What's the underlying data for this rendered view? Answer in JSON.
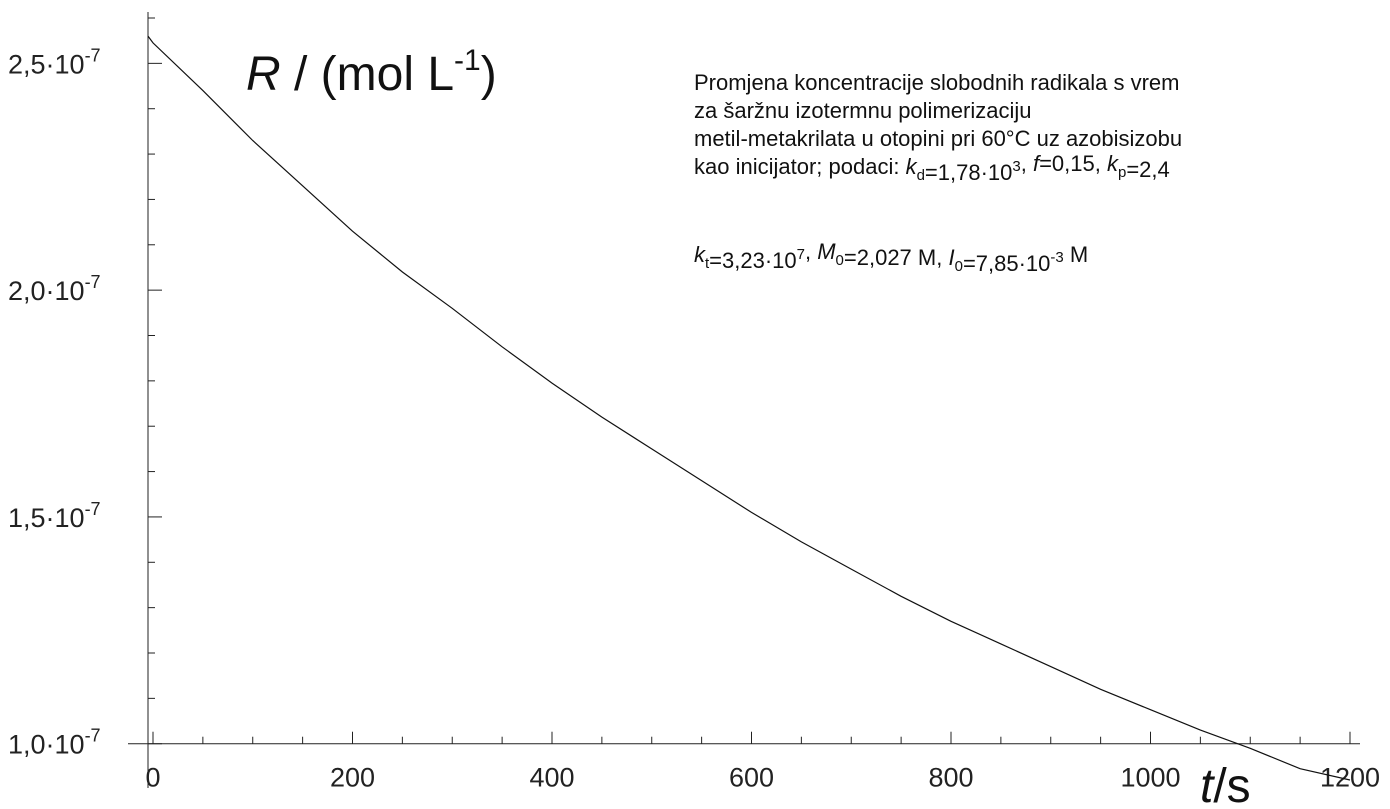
{
  "chart_data": {
    "type": "line",
    "title_lines": [
      "Promjena koncentracije slobodnih radikala s vrem",
      "za šaržnu izotermnu polimerizaciju",
      "metil-metakrilata u otopini pri 60°C uz azobisizobu",
      " kao inicijator; podaci: k_d=1,78·10^3, f=0,15, k_p=2,4",
      "k_t=3,23·10^7, M_0=2,027 M, I_0=7,85·10^-3 M"
    ],
    "xlabel": "t/s",
    "ylabel": "R / (mol L^-1)",
    "xlim": [
      -5,
      1200
    ],
    "ylim": [
      9.2e-08,
      2.6e-07
    ],
    "x_ticks": [
      0,
      200,
      400,
      600,
      800,
      1000,
      1200
    ],
    "x_tick_labels": [
      "0",
      "200",
      "400",
      "600",
      "800",
      "1000",
      "1200"
    ],
    "y_ticks": [
      1e-07,
      1.5e-07,
      2e-07,
      2.5e-07
    ],
    "y_tick_labels": [
      "1,0·10",
      "1,5·10",
      "2,0·10",
      "2,5·10"
    ],
    "y_tick_exponent": "-7",
    "grid": false,
    "series": [
      {
        "x": [
          -5,
          0,
          50,
          100,
          150,
          200,
          250,
          300,
          350,
          400,
          450,
          500,
          550,
          600,
          650,
          700,
          750,
          800,
          850,
          900,
          950,
          1000,
          1050,
          1100,
          1150,
          1200
        ],
        "y": [
          2.56e-07,
          2.545e-07,
          2.44e-07,
          2.33e-07,
          2.23e-07,
          2.13e-07,
          2.04e-07,
          1.96e-07,
          1.875e-07,
          1.795e-07,
          1.72e-07,
          1.65e-07,
          1.58e-07,
          1.51e-07,
          1.445e-07,
          1.385e-07,
          1.325e-07,
          1.27e-07,
          1.22e-07,
          1.17e-07,
          1.12e-07,
          1.075e-07,
          1.03e-07,
          9.9e-08,
          9.45e-08,
          9.2e-08
        ]
      }
    ]
  }
}
